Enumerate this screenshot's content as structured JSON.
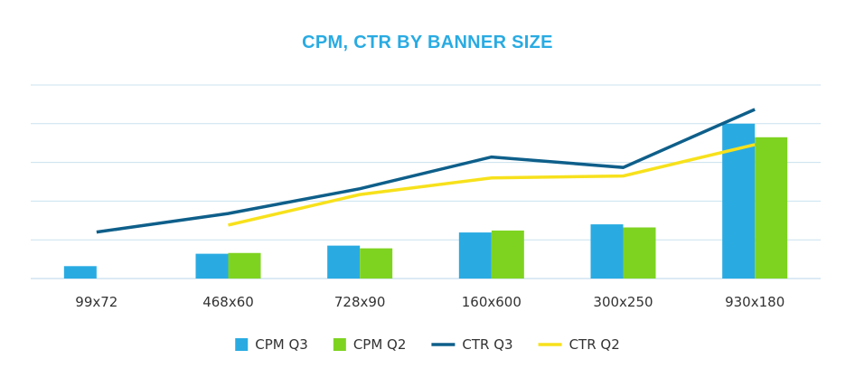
{
  "chart_data": {
    "type": "bar",
    "title": "CPM, CTR BY BANNER SIZE",
    "xlabel": "",
    "ylabel": "",
    "categories": [
      "99x72",
      "468x60",
      "728x90",
      "160x600",
      "300x250",
      "930x180"
    ],
    "ylim": [
      0,
      5
    ],
    "grid": true,
    "legend_position": "bottom",
    "series": [
      {
        "name": "CPM Q3",
        "kind": "bar",
        "color": "#29abe2",
        "values": [
          0.32,
          0.64,
          0.85,
          1.19,
          1.4,
          4.0
        ]
      },
      {
        "name": "CPM Q2",
        "kind": "bar",
        "color": "#7ed321",
        "values": [
          null,
          0.66,
          0.78,
          1.24,
          1.32,
          3.65
        ]
      },
      {
        "name": "CTR Q3",
        "kind": "line",
        "color": "#0e5f8a",
        "values": [
          1.2,
          1.68,
          2.32,
          3.14,
          2.87,
          4.37
        ]
      },
      {
        "name": "CTR Q2",
        "kind": "line",
        "color": "#f7e11b",
        "values": [
          null,
          1.38,
          2.17,
          2.6,
          2.65,
          3.46
        ]
      }
    ]
  }
}
